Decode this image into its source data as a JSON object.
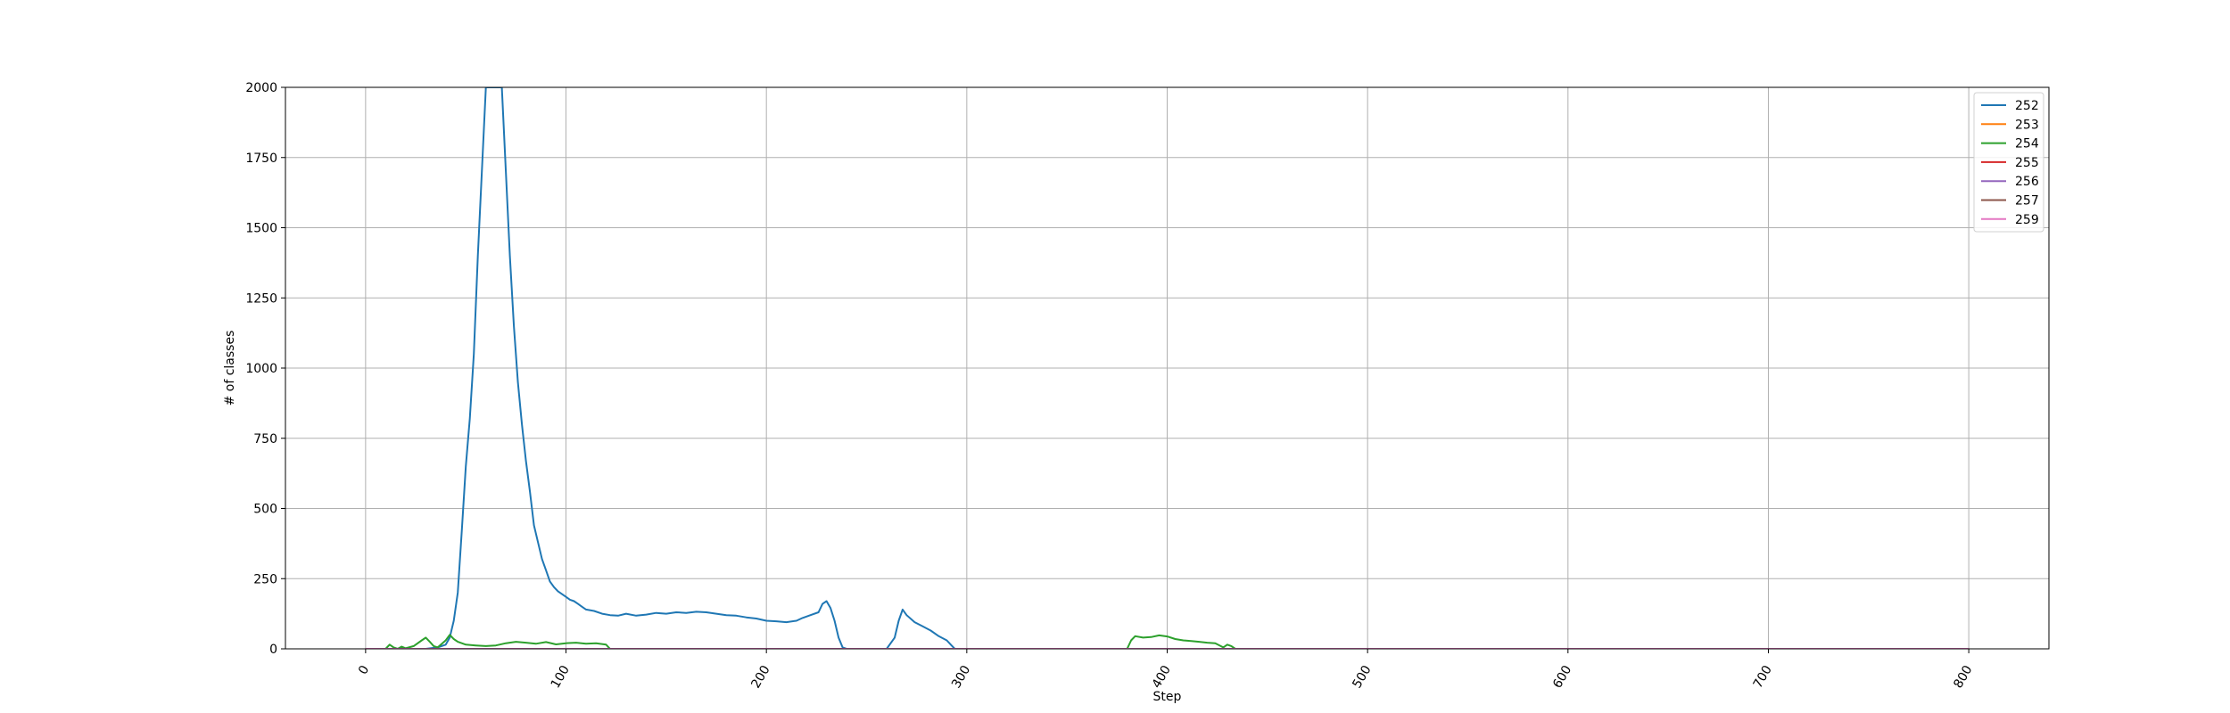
{
  "chart_data": {
    "type": "line",
    "title": "",
    "xlabel": "Step",
    "ylabel": "# of classes",
    "xlim": [
      -40,
      840
    ],
    "ylim": [
      0,
      2000
    ],
    "xticks": [
      0,
      100,
      200,
      300,
      400,
      500,
      600,
      700,
      800
    ],
    "yticks": [
      0,
      250,
      500,
      750,
      1000,
      1250,
      1500,
      1750,
      2000
    ],
    "grid": true,
    "legend_position": "top-right",
    "series": [
      {
        "name": "252",
        "color": "#1f77b4",
        "x": [
          0,
          30,
          36,
          40,
          42,
          44,
          46,
          48,
          50,
          52,
          54,
          56,
          58,
          60,
          62,
          64,
          66,
          68,
          70,
          72,
          74,
          76,
          78,
          80,
          82,
          84,
          86,
          88,
          90,
          92,
          94,
          96,
          98,
          100,
          102,
          104,
          106,
          108,
          110,
          114,
          118,
          122,
          126,
          130,
          135,
          140,
          145,
          150,
          155,
          160,
          165,
          170,
          175,
          180,
          185,
          190,
          195,
          200,
          205,
          210,
          215,
          218,
          222,
          226,
          228,
          230,
          232,
          234,
          236,
          238,
          240,
          242,
          260,
          264,
          266,
          268,
          270,
          274,
          278,
          282,
          286,
          290,
          292,
          294,
          300,
          800
        ],
        "y": [
          0,
          0,
          5,
          15,
          40,
          100,
          200,
          420,
          650,
          820,
          1050,
          1400,
          1700,
          2000,
          2000,
          2000,
          2000,
          2000,
          1700,
          1400,
          1150,
          950,
          800,
          670,
          560,
          440,
          380,
          320,
          280,
          240,
          220,
          205,
          195,
          185,
          175,
          170,
          160,
          150,
          140,
          135,
          125,
          120,
          118,
          125,
          118,
          122,
          128,
          125,
          130,
          128,
          132,
          130,
          125,
          120,
          118,
          112,
          108,
          100,
          98,
          95,
          100,
          110,
          120,
          130,
          160,
          170,
          145,
          100,
          40,
          5,
          0,
          0,
          0,
          40,
          100,
          140,
          120,
          95,
          80,
          65,
          45,
          30,
          15,
          0,
          0,
          0
        ]
      },
      {
        "name": "253",
        "color": "#ff7f0e",
        "x": [
          0,
          800
        ],
        "y": [
          0,
          0
        ]
      },
      {
        "name": "254",
        "color": "#2ca02c",
        "x": [
          0,
          10,
          12,
          14,
          16,
          18,
          20,
          24,
          28,
          30,
          32,
          34,
          36,
          40,
          42,
          44,
          46,
          50,
          55,
          60,
          65,
          70,
          75,
          80,
          85,
          90,
          95,
          100,
          105,
          110,
          115,
          120,
          122,
          380,
          382,
          384,
          388,
          392,
          396,
          400,
          404,
          408,
          412,
          416,
          420,
          424,
          428,
          430,
          432,
          434,
          800
        ],
        "y": [
          0,
          0,
          15,
          5,
          0,
          8,
          2,
          10,
          30,
          40,
          25,
          10,
          5,
          30,
          50,
          35,
          25,
          15,
          12,
          10,
          12,
          20,
          25,
          22,
          18,
          24,
          16,
          20,
          22,
          18,
          20,
          15,
          0,
          0,
          30,
          45,
          40,
          42,
          48,
          44,
          35,
          30,
          28,
          25,
          22,
          20,
          5,
          15,
          10,
          0,
          0
        ]
      },
      {
        "name": "255",
        "color": "#d62728",
        "x": [
          0,
          800
        ],
        "y": [
          0,
          0
        ]
      },
      {
        "name": "256",
        "color": "#9467bd",
        "x": [
          0,
          800
        ],
        "y": [
          0,
          0
        ]
      },
      {
        "name": "257",
        "color": "#8c564b",
        "x": [
          0,
          800
        ],
        "y": [
          0,
          0
        ]
      },
      {
        "name": "259",
        "color": "#e377c2",
        "x": [
          0,
          800
        ],
        "y": [
          0,
          0
        ]
      }
    ]
  }
}
